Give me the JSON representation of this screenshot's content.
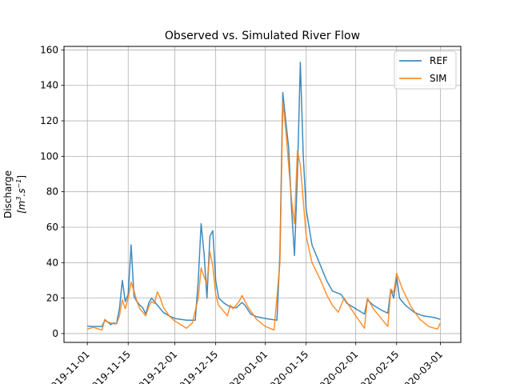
{
  "chart_data": {
    "type": "line",
    "title": "Observed vs. Simulated River Flow",
    "xlabel": "",
    "ylabel_line1": "Discharge",
    "ylabel_line2_parts": [
      "[m",
      "3",
      ".s",
      "−1",
      "]"
    ],
    "ylim": [
      -5,
      162
    ],
    "xlim": [
      "2019-10-24",
      "2020-03-08"
    ],
    "yticks": [
      0,
      20,
      40,
      60,
      80,
      100,
      120,
      140,
      160
    ],
    "xticks": [
      "2019-11-01",
      "2019-11-15",
      "2019-12-01",
      "2019-12-15",
      "2020-01-01",
      "2020-01-15",
      "2020-02-01",
      "2020-02-15",
      "2020-03-01"
    ],
    "xtick_labels": [
      "2019-11-01",
      "2019-11-15",
      "2019-12-01",
      "2019-12-15",
      "2020-01-01",
      "2020-01-15",
      "2020-02-01",
      "2020-02-15",
      "2020-03-01"
    ],
    "grid": true,
    "legend_position": "top-right",
    "series": [
      {
        "name": "REF",
        "color": "#1f77b4",
        "points": [
          [
            "2019-11-01",
            4.2
          ],
          [
            "2019-11-03",
            4.0
          ],
          [
            "2019-11-06",
            4.0
          ],
          [
            "2019-11-07",
            7.5
          ],
          [
            "2019-11-08",
            6.5
          ],
          [
            "2019-11-09",
            5.0
          ],
          [
            "2019-11-10",
            6.0
          ],
          [
            "2019-11-11",
            5.5
          ],
          [
            "2019-11-12",
            14.0
          ],
          [
            "2019-11-13",
            30.0
          ],
          [
            "2019-11-14",
            18.0
          ],
          [
            "2019-11-15",
            22.0
          ],
          [
            "2019-11-16",
            50.0
          ],
          [
            "2019-11-17",
            21.0
          ],
          [
            "2019-11-18",
            18.0
          ],
          [
            "2019-11-19",
            16.0
          ],
          [
            "2019-11-20",
            14.5
          ],
          [
            "2019-11-21",
            11.0
          ],
          [
            "2019-11-22",
            17.0
          ],
          [
            "2019-11-23",
            20.0
          ],
          [
            "2019-11-24",
            18.0
          ],
          [
            "2019-11-25",
            16.0
          ],
          [
            "2019-11-26",
            14.0
          ],
          [
            "2019-11-27",
            12.0
          ],
          [
            "2019-11-29",
            10.0
          ],
          [
            "2019-12-01",
            8.5
          ],
          [
            "2019-12-05",
            7.5
          ],
          [
            "2019-12-08",
            7.5
          ],
          [
            "2019-12-09",
            30.0
          ],
          [
            "2019-12-10",
            62.0
          ],
          [
            "2019-12-11",
            45.0
          ],
          [
            "2019-12-12",
            20.0
          ],
          [
            "2019-12-13",
            55.0
          ],
          [
            "2019-12-14",
            58.0
          ],
          [
            "2019-12-15",
            30.0
          ],
          [
            "2019-12-16",
            20.0
          ],
          [
            "2019-12-18",
            17.0
          ],
          [
            "2019-12-20",
            15.0
          ],
          [
            "2019-12-22",
            14.5
          ],
          [
            "2019-12-23",
            16.0
          ],
          [
            "2019-12-24",
            17.5
          ],
          [
            "2019-12-25",
            16.0
          ],
          [
            "2019-12-27",
            11.0
          ],
          [
            "2019-12-29",
            9.5
          ],
          [
            "2020-01-01",
            8.5
          ],
          [
            "2020-01-05",
            7.5
          ],
          [
            "2020-01-06",
            45.0
          ],
          [
            "2020-01-07",
            136.0
          ],
          [
            "2020-01-08",
            120.0
          ],
          [
            "2020-01-09",
            105.0
          ],
          [
            "2020-01-10",
            70.0
          ],
          [
            "2020-01-11",
            44.0
          ],
          [
            "2020-01-12",
            90.0
          ],
          [
            "2020-01-13",
            153.0
          ],
          [
            "2020-01-14",
            100.0
          ],
          [
            "2020-01-15",
            70.0
          ],
          [
            "2020-01-17",
            50.0
          ],
          [
            "2020-01-20",
            38.0
          ],
          [
            "2020-01-22",
            30.0
          ],
          [
            "2020-01-24",
            24.0
          ],
          [
            "2020-01-27",
            22.0
          ],
          [
            "2020-01-29",
            17.0
          ],
          [
            "2020-02-01",
            14.0
          ],
          [
            "2020-02-04",
            11.0
          ],
          [
            "2020-02-05",
            19.0
          ],
          [
            "2020-02-07",
            16.0
          ],
          [
            "2020-02-10",
            13.0
          ],
          [
            "2020-02-12",
            11.5
          ],
          [
            "2020-02-13",
            25.0
          ],
          [
            "2020-02-14",
            20.0
          ],
          [
            "2020-02-15",
            32.0
          ],
          [
            "2020-02-16",
            20.0
          ],
          [
            "2020-02-18",
            16.0
          ],
          [
            "2020-02-21",
            12.0
          ],
          [
            "2020-02-24",
            10.0
          ],
          [
            "2020-02-28",
            9.0
          ],
          [
            "2020-03-01",
            8.0
          ]
        ]
      },
      {
        "name": "SIM",
        "color": "#ff7f0e",
        "points": [
          [
            "2019-11-01",
            2.5
          ],
          [
            "2019-11-03",
            3.5
          ],
          [
            "2019-11-06",
            2.0
          ],
          [
            "2019-11-07",
            8.0
          ],
          [
            "2019-11-08",
            6.5
          ],
          [
            "2019-11-09",
            6.0
          ],
          [
            "2019-11-10",
            5.5
          ],
          [
            "2019-11-11",
            5.5
          ],
          [
            "2019-11-12",
            10.0
          ],
          [
            "2019-11-13",
            19.0
          ],
          [
            "2019-11-14",
            14.0
          ],
          [
            "2019-11-15",
            20.0
          ],
          [
            "2019-11-16",
            29.0
          ],
          [
            "2019-11-17",
            24.0
          ],
          [
            "2019-11-18",
            18.0
          ],
          [
            "2019-11-19",
            14.0
          ],
          [
            "2019-11-20",
            12.0
          ],
          [
            "2019-11-21",
            10.0
          ],
          [
            "2019-11-22",
            15.0
          ],
          [
            "2019-11-23",
            18.0
          ],
          [
            "2019-11-24",
            17.0
          ],
          [
            "2019-11-25",
            23.5
          ],
          [
            "2019-11-26",
            20.0
          ],
          [
            "2019-11-27",
            15.0
          ],
          [
            "2019-11-29",
            10.0
          ],
          [
            "2019-12-01",
            7.0
          ],
          [
            "2019-12-05",
            3.0
          ],
          [
            "2019-12-07",
            6.0
          ],
          [
            "2019-12-09",
            20.0
          ],
          [
            "2019-12-10",
            37.0
          ],
          [
            "2019-12-11",
            32.0
          ],
          [
            "2019-12-12",
            28.0
          ],
          [
            "2019-12-13",
            46.0
          ],
          [
            "2019-12-14",
            38.0
          ],
          [
            "2019-12-15",
            22.0
          ],
          [
            "2019-12-16",
            16.0
          ],
          [
            "2019-12-18",
            12.0
          ],
          [
            "2019-12-19",
            10.0
          ],
          [
            "2019-12-20",
            16.0
          ],
          [
            "2019-12-21",
            14.0
          ],
          [
            "2019-12-23",
            18.0
          ],
          [
            "2019-12-24",
            21.5
          ],
          [
            "2019-12-26",
            15.0
          ],
          [
            "2019-12-29",
            8.0
          ],
          [
            "2020-01-01",
            4.0
          ],
          [
            "2020-01-04",
            2.0
          ],
          [
            "2020-01-06",
            40.0
          ],
          [
            "2020-01-07",
            131.0
          ],
          [
            "2020-01-08",
            115.0
          ],
          [
            "2020-01-09",
            95.0
          ],
          [
            "2020-01-10",
            75.0
          ],
          [
            "2020-01-11",
            62.0
          ],
          [
            "2020-01-12",
            103.0
          ],
          [
            "2020-01-13",
            95.0
          ],
          [
            "2020-01-14",
            75.0
          ],
          [
            "2020-01-15",
            55.0
          ],
          [
            "2020-01-17",
            40.0
          ],
          [
            "2020-01-20",
            30.0
          ],
          [
            "2020-01-22",
            22.0
          ],
          [
            "2020-01-24",
            16.0
          ],
          [
            "2020-01-26",
            12.0
          ],
          [
            "2020-01-28",
            20.0
          ],
          [
            "2020-01-30",
            15.0
          ],
          [
            "2020-02-01",
            10.0
          ],
          [
            "2020-02-04",
            3.0
          ],
          [
            "2020-02-05",
            20.0
          ],
          [
            "2020-02-07",
            14.0
          ],
          [
            "2020-02-10",
            8.0
          ],
          [
            "2020-02-12",
            4.0
          ],
          [
            "2020-02-13",
            25.0
          ],
          [
            "2020-02-14",
            23.0
          ],
          [
            "2020-02-15",
            34.0
          ],
          [
            "2020-02-17",
            25.0
          ],
          [
            "2020-02-20",
            15.0
          ],
          [
            "2020-02-23",
            8.0
          ],
          [
            "2020-02-26",
            4.0
          ],
          [
            "2020-02-29",
            2.5
          ],
          [
            "2020-03-01",
            6.0
          ]
        ]
      }
    ]
  }
}
